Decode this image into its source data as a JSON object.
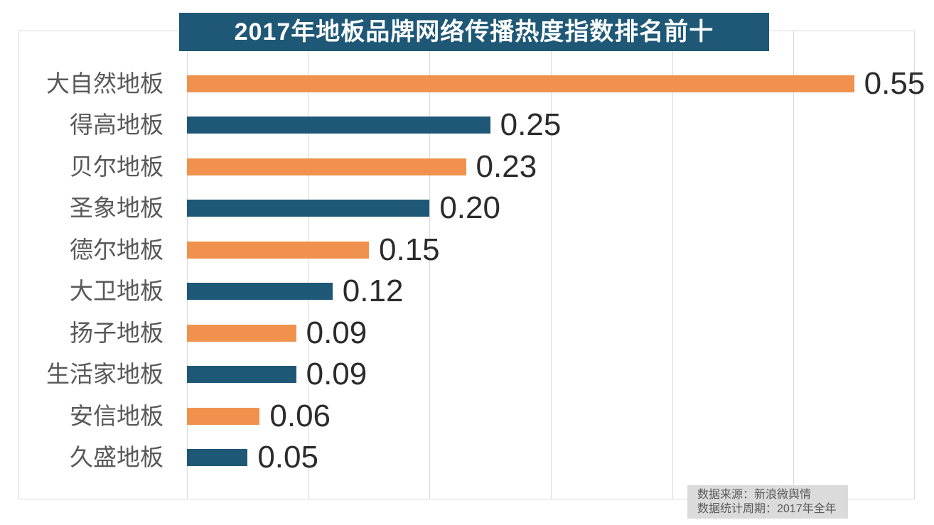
{
  "title": "2017年地板品牌网络传播热度指数排名前十",
  "source_note": {
    "line1": "数据来源：新浪微舆情",
    "line2": "数据统计周期：2017年全年"
  },
  "colors": {
    "bar_orange": "#F0924D",
    "bar_teal": "#1E5876",
    "title_bg": "#1E5876",
    "title_text": "#FFFFFF",
    "grid": "#D9D9D9",
    "category_label": "#595959",
    "value_label": "#2B2B2B",
    "note_bg": "#DBDBDB",
    "note_text": "#595959"
  },
  "chart_data": {
    "type": "bar",
    "orientation": "horizontal",
    "title": "2017年地板品牌网络传播热度指数排名前十",
    "categories": [
      "大自然地板",
      "得高地板",
      "贝尔地板",
      "圣象地板",
      "德尔地板",
      "大卫地板",
      "扬子地板",
      "生活家地板",
      "安信地板",
      "久盛地板"
    ],
    "values": [
      0.55,
      0.25,
      0.23,
      0.2,
      0.15,
      0.12,
      0.09,
      0.09,
      0.06,
      0.05
    ],
    "value_labels": [
      "0.55",
      "0.25",
      "0.23",
      "0.20",
      "0.15",
      "0.12",
      "0.09",
      "0.09",
      "0.06",
      "0.05"
    ],
    "xlabel": "",
    "ylabel": "",
    "xlim": [
      0,
      0.6
    ],
    "gridline_interval": 0.1,
    "grid": "vertical-only",
    "legend": "none",
    "bar_color_pattern": [
      "#F0924D",
      "#1E5876"
    ]
  }
}
